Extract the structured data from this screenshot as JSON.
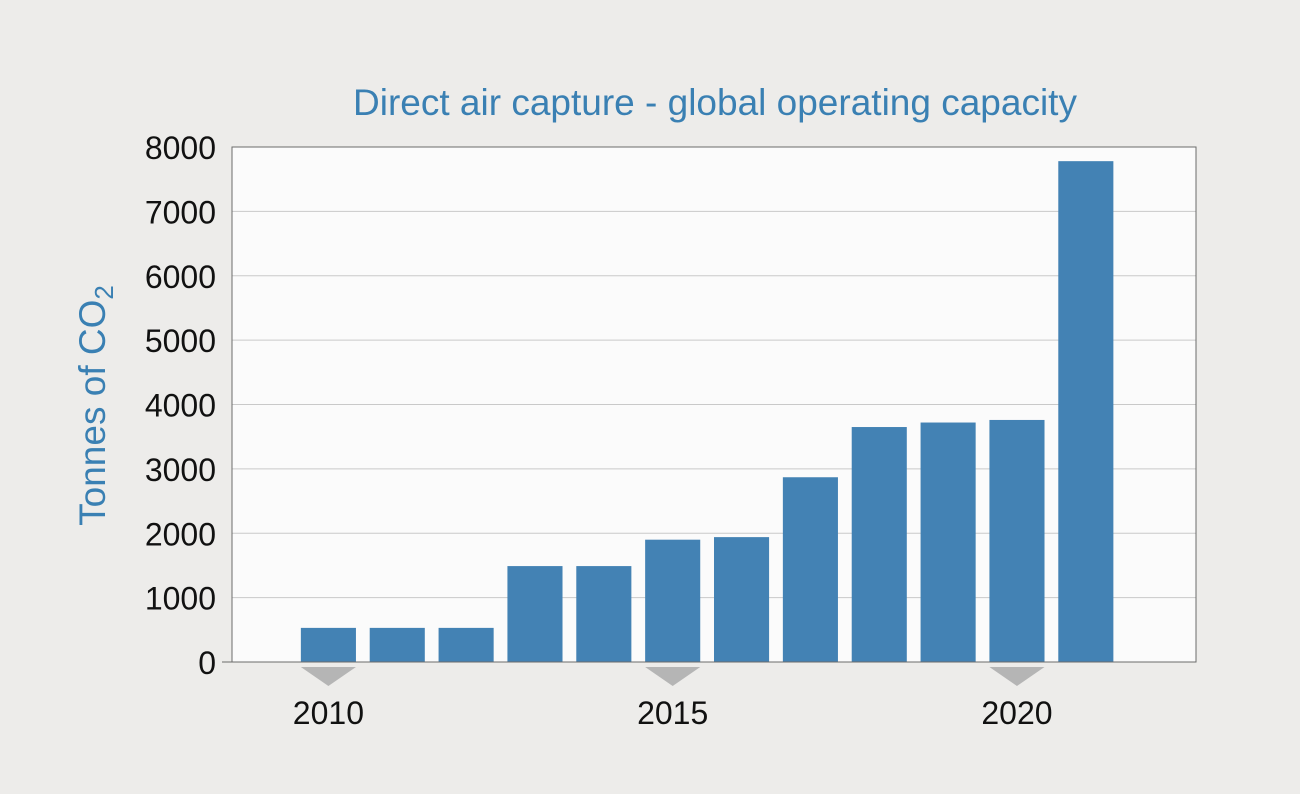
{
  "chart_data": {
    "type": "bar",
    "title": "Direct air capture - global operating capacity",
    "ylabel": {
      "main": "Tonnes of CO",
      "subscript": "2"
    },
    "xlabel": "",
    "years": [
      2010,
      2011,
      2012,
      2013,
      2014,
      2015,
      2016,
      2017,
      2018,
      2019,
      2020,
      2021
    ],
    "values": [
      530,
      530,
      530,
      1490,
      1490,
      1900,
      1940,
      2870,
      3650,
      3720,
      3760,
      7780
    ],
    "x_ticks": [
      "2010",
      "2015",
      "2020"
    ],
    "y_ticks": [
      "0",
      "1000",
      "2000",
      "3000",
      "4000",
      "5000",
      "6000",
      "7000",
      "8000"
    ],
    "ylim": [
      0,
      8000
    ],
    "xlim": [
      2008.6,
      2022.6
    ],
    "grid": true,
    "legend": "none"
  },
  "colors": {
    "background": "#edecea",
    "plot_background": "#fbfbfb",
    "bar": "#4382b4",
    "title": "#3a80b3",
    "axis_label": "#3a80b3",
    "grid": "#c9c9c9",
    "frame": "#6b6b6b",
    "tick_marker": "#b5b5b5",
    "tick_text": "#111111"
  }
}
